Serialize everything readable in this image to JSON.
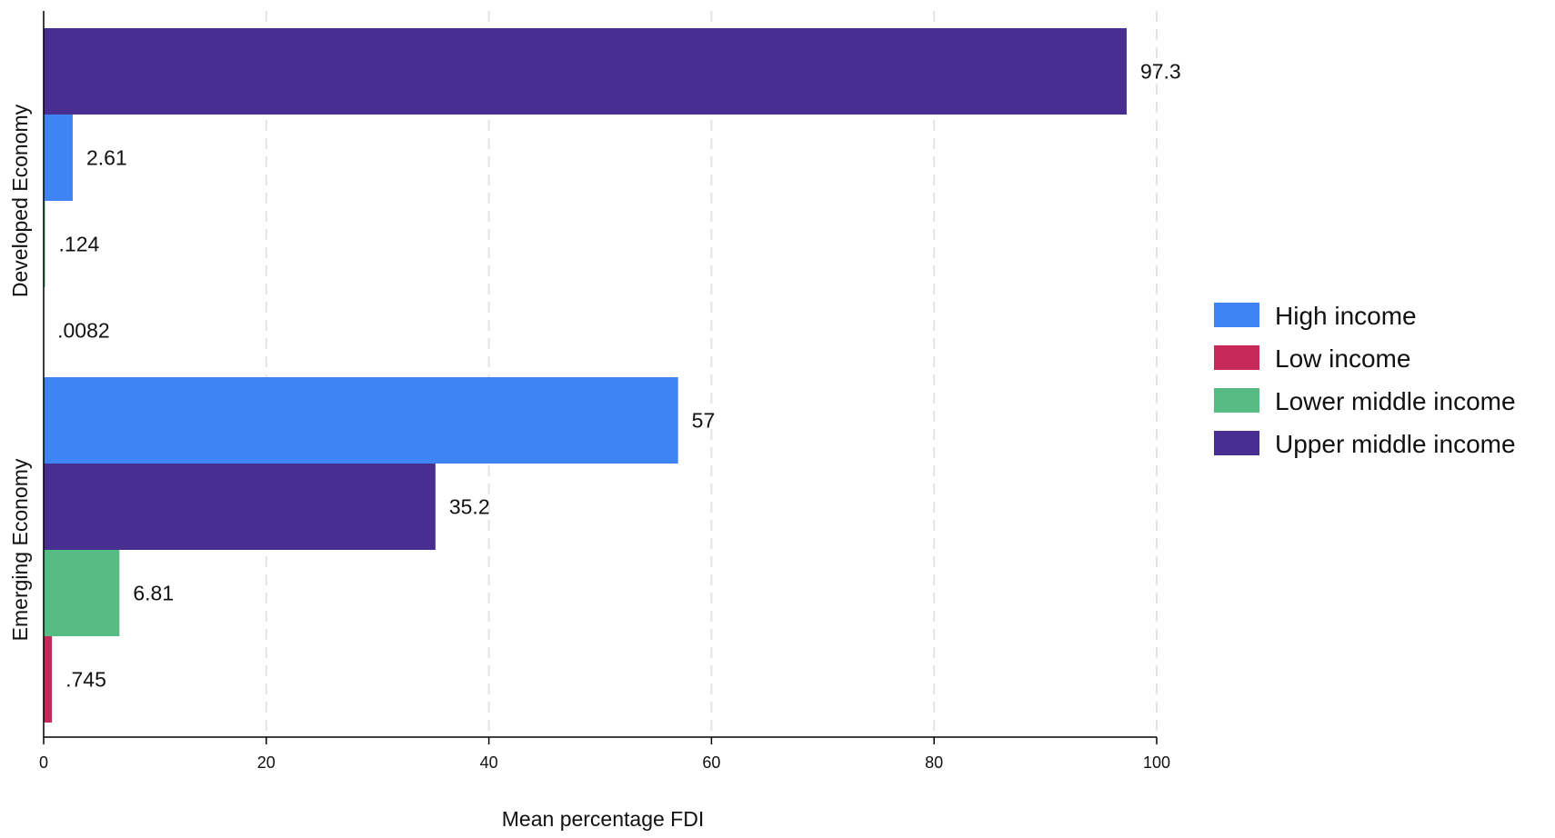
{
  "chart_data": {
    "type": "bar",
    "orientation": "horizontal",
    "xlabel": "Mean percentage FDI",
    "ylabel": "",
    "xlim": [
      0,
      100
    ],
    "xticks": [
      0,
      20,
      40,
      60,
      80,
      100
    ],
    "grid": "vertical dashed",
    "legend_position": "right",
    "series": [
      {
        "name": "High income",
        "color": "#3F84F4"
      },
      {
        "name": "Low income",
        "color": "#C52A5A"
      },
      {
        "name": "Lower middle income",
        "color": "#57BC83"
      },
      {
        "name": "Upper middle income",
        "color": "#492E91"
      }
    ],
    "groups": [
      {
        "name": "Developed Economy",
        "bars": [
          {
            "series": "Upper middle income",
            "value": 97.3,
            "label": "97.3"
          },
          {
            "series": "High income",
            "value": 2.61,
            "label": "2.61"
          },
          {
            "series": "Lower middle income",
            "value": 0.124,
            "label": ".124"
          },
          {
            "series": "Low income",
            "value": 0.0082,
            "label": ".0082"
          }
        ]
      },
      {
        "name": "Emerging Economy",
        "bars": [
          {
            "series": "High income",
            "value": 57,
            "label": "57"
          },
          {
            "series": "Upper middle income",
            "value": 35.2,
            "label": "35.2"
          },
          {
            "series": "Lower middle income",
            "value": 6.81,
            "label": "6.81"
          },
          {
            "series": "Low income",
            "value": 0.745,
            "label": ".745"
          }
        ]
      }
    ]
  }
}
